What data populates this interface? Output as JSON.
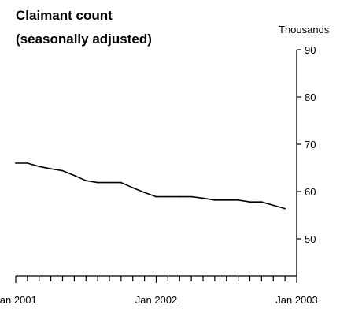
{
  "chart_data": {
    "type": "line",
    "title_line1": "Claimant count",
    "title_line2": "(seasonally adjusted)",
    "ylabel": "Thousands",
    "y_ticks": [
      "90",
      "80",
      "70",
      "60",
      "50"
    ],
    "x_tick_labels": [
      "Jan 2001",
      "Jan 2002",
      "Jan 2003"
    ],
    "ylim": [
      40,
      90
    ],
    "grid": false,
    "x": [
      "Jan 2001",
      "Feb 2001",
      "Mar 2001",
      "Apr 2001",
      "May 2001",
      "Jun 2001",
      "Jul 2001",
      "Aug 2001",
      "Sep 2001",
      "Oct 2001",
      "Nov 2001",
      "Dec 2001",
      "Jan 2002",
      "Feb 2002",
      "Mar 2002",
      "Apr 2002",
      "May 2002",
      "Jun 2002",
      "Jul 2002",
      "Aug 2002",
      "Sep 2002",
      "Oct 2002",
      "Nov 2002",
      "Dec 2002"
    ],
    "series": [
      {
        "values": [
          66.0,
          66.0,
          65.3,
          64.8,
          64.4,
          63.4,
          62.3,
          61.9,
          61.9,
          61.9,
          60.8,
          59.8,
          58.9,
          58.9,
          58.9,
          58.9,
          58.6,
          58.2,
          58.2,
          58.2,
          57.8,
          57.8,
          57.1,
          56.4
        ]
      }
    ]
  }
}
